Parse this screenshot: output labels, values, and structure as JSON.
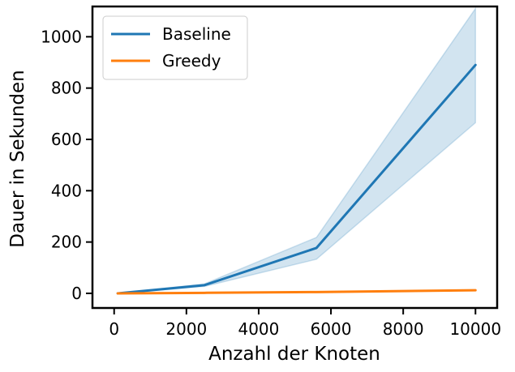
{
  "chart_data": {
    "type": "line",
    "xlabel": "Anzahl der Knoten",
    "ylabel": "Dauer in Sekunden",
    "xlim": [
      -600,
      10600
    ],
    "ylim": [
      -57,
      1118
    ],
    "xticks": [
      0,
      2000,
      4000,
      6000,
      8000,
      10000
    ],
    "yticks": [
      0,
      200,
      400,
      600,
      800,
      1000
    ],
    "legend_position": "top-left",
    "grid": false,
    "series": [
      {
        "name": "Baseline",
        "color": "#1f77b4",
        "x": [
          100,
          2500,
          5600,
          10000
        ],
        "values": [
          0,
          32,
          177,
          890
        ],
        "band_lower": [
          0,
          27,
          133,
          665
        ],
        "band_upper": [
          0,
          37,
          218,
          1110
        ]
      },
      {
        "name": "Greedy",
        "color": "#ff7f0e",
        "x": [
          100,
          2500,
          5600,
          10000
        ],
        "values": [
          0,
          2,
          5,
          12
        ]
      }
    ]
  }
}
